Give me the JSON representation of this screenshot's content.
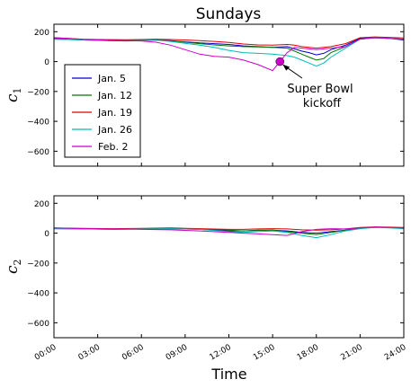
{
  "chart_data": {
    "type": "line",
    "title": "Sundays",
    "xlabel": "Time",
    "xticks": [
      "00:00",
      "03:00",
      "06:00",
      "09:00",
      "12:00",
      "15:00",
      "18:00",
      "21:00",
      "24:00"
    ],
    "xlim_hours": [
      0,
      24
    ],
    "legend_placement": "lower-left of top panel",
    "annotation": {
      "text_line1": "Super Bowl",
      "text_line2": "kickoff",
      "x_hours": 15.5,
      "y": 0,
      "marker_color": "#cc00cc"
    },
    "panels": [
      {
        "ylabel": "c",
        "ylabel_sub": "1",
        "ylim": [
          -700,
          250
        ],
        "yticks": [
          "200",
          "0",
          "−200",
          "−400",
          "−600"
        ],
        "ytick_values": [
          200,
          0,
          -200,
          -400,
          -600
        ],
        "series": [
          {
            "name": "Jan. 5",
            "color": "#0000cc",
            "x": [
              0,
              1,
              2,
              3,
              4,
              5,
              6,
              7,
              8,
              9,
              10,
              11,
              12,
              13,
              14,
              15,
              16,
              16.5,
              17,
              17.5,
              18,
              18.5,
              19,
              20,
              21,
              22,
              23,
              24
            ],
            "y": [
              155,
              150,
              145,
              142,
              140,
              138,
              142,
              145,
              140,
              132,
              125,
              120,
              115,
              105,
              100,
              95,
              100,
              85,
              70,
              60,
              45,
              55,
              80,
              110,
              155,
              160,
              155,
              145
            ]
          },
          {
            "name": "Jan. 12",
            "color": "#007700",
            "x": [
              0,
              1,
              2,
              3,
              4,
              5,
              6,
              7,
              8,
              9,
              10,
              11,
              12,
              13,
              14,
              15,
              16,
              16.5,
              17,
              17.5,
              18,
              18.5,
              19,
              20,
              21,
              22,
              23,
              24
            ],
            "y": [
              150,
              148,
              146,
              144,
              140,
              140,
              142,
              145,
              138,
              130,
              120,
              112,
              105,
              100,
              98,
              95,
              90,
              70,
              50,
              30,
              10,
              20,
              60,
              100,
              150,
              160,
              155,
              150
            ]
          },
          {
            "name": "Jan. 19",
            "color": "#dd0000",
            "x": [
              0,
              1,
              2,
              3,
              4,
              5,
              6,
              7,
              8,
              9,
              10,
              11,
              12,
              13,
              14,
              15,
              16,
              16.5,
              17,
              17.5,
              18,
              18.5,
              19,
              20,
              21,
              22,
              23,
              24
            ],
            "y": [
              160,
              155,
              150,
              148,
              147,
              146,
              148,
              150,
              148,
              145,
              140,
              135,
              128,
              118,
              112,
              110,
              115,
              110,
              100,
              95,
              90,
              95,
              100,
              120,
              160,
              165,
              162,
              158
            ]
          },
          {
            "name": "Jan. 26",
            "color": "#00bbbb",
            "x": [
              0,
              1,
              2,
              3,
              4,
              5,
              6,
              7,
              8,
              9,
              10,
              11,
              12,
              13,
              14,
              15,
              16,
              16.5,
              17,
              17.5,
              18,
              18.5,
              19,
              20,
              21,
              22,
              23,
              24
            ],
            "y": [
              150,
              148,
              145,
              142,
              140,
              140,
              142,
              143,
              135,
              122,
              110,
              95,
              75,
              60,
              55,
              50,
              40,
              30,
              10,
              -10,
              -30,
              -10,
              30,
              90,
              150,
              160,
              155,
              150
            ]
          },
          {
            "name": "Feb. 2",
            "color": "#cc00cc",
            "x": [
              0,
              1,
              2,
              3,
              4,
              5,
              6,
              7,
              8,
              9,
              10,
              11,
              12,
              13,
              14,
              15,
              15.5,
              16,
              16.5,
              17,
              17.5,
              18,
              18.5,
              19,
              20,
              21,
              22,
              23,
              24
            ],
            "y": [
              160,
              155,
              148,
              145,
              142,
              140,
              138,
              130,
              110,
              80,
              50,
              35,
              30,
              10,
              -20,
              -60,
              0,
              60,
              95,
              90,
              85,
              80,
              85,
              90,
              100,
              150,
              160,
              155,
              150
            ]
          }
        ]
      },
      {
        "ylabel": "c",
        "ylabel_sub": "2",
        "ylim": [
          -700,
          250
        ],
        "yticks": [
          "200",
          "0",
          "−200",
          "−400",
          "−600"
        ],
        "ytick_values": [
          200,
          0,
          -200,
          -400,
          -600
        ],
        "series": [
          {
            "name": "Jan. 5",
            "color": "#0000cc",
            "x": [
              0,
              2,
              4,
              6,
              8,
              10,
              12,
              13,
              14,
              15,
              16,
              17,
              18,
              19,
              20,
              21,
              22,
              23,
              24
            ],
            "y": [
              30,
              28,
              25,
              28,
              30,
              25,
              15,
              15,
              20,
              20,
              15,
              5,
              0,
              10,
              20,
              35,
              40,
              38,
              35
            ]
          },
          {
            "name": "Jan. 12",
            "color": "#007700",
            "x": [
              0,
              2,
              4,
              6,
              8,
              10,
              12,
              13,
              14,
              15,
              16,
              17,
              18,
              19,
              20,
              21,
              22,
              23,
              24
            ],
            "y": [
              32,
              30,
              28,
              30,
              32,
              28,
              20,
              15,
              18,
              20,
              10,
              0,
              -10,
              5,
              20,
              35,
              40,
              38,
              32
            ]
          },
          {
            "name": "Jan. 19",
            "color": "#dd0000",
            "x": [
              0,
              2,
              4,
              6,
              8,
              10,
              12,
              13,
              14,
              15,
              16,
              17,
              18,
              19,
              20,
              21,
              22,
              23,
              24
            ],
            "y": [
              35,
              32,
              30,
              32,
              35,
              30,
              25,
              25,
              28,
              30,
              28,
              22,
              20,
              22,
              28,
              38,
              42,
              40,
              38
            ]
          },
          {
            "name": "Jan. 26",
            "color": "#00bbbb",
            "x": [
              0,
              2,
              4,
              6,
              8,
              10,
              12,
              13,
              14,
              15,
              16,
              17,
              18,
              19,
              20,
              21,
              22,
              23,
              24
            ],
            "y": [
              30,
              28,
              26,
              28,
              30,
              25,
              10,
              5,
              10,
              15,
              5,
              -15,
              -30,
              -10,
              15,
              30,
              38,
              35,
              30
            ]
          },
          {
            "name": "Feb. 2",
            "color": "#cc00cc",
            "x": [
              0,
              2,
              4,
              6,
              8,
              10,
              12,
              13,
              14,
              15,
              16,
              17,
              18,
              19,
              20,
              21,
              22,
              23,
              24
            ],
            "y": [
              35,
              30,
              28,
              25,
              22,
              15,
              5,
              0,
              -5,
              -10,
              -15,
              10,
              25,
              30,
              28,
              35,
              40,
              38,
              35
            ]
          }
        ]
      }
    ]
  }
}
